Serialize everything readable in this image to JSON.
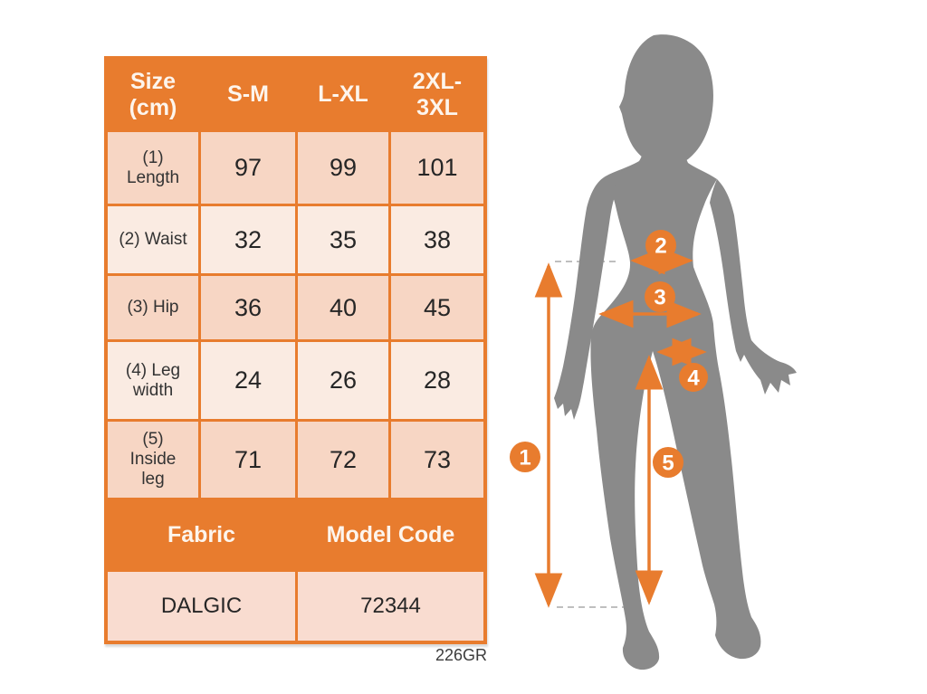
{
  "colors": {
    "accent": "#E87C2E",
    "silhouette": "#8A8A8A",
    "row_dark": "#F7D6C4",
    "row_light": "#FAEBE2",
    "fabric_row": "#F9DCD0"
  },
  "size_table": {
    "columns": [
      [
        "Size",
        "(cm)"
      ],
      [
        "S-M"
      ],
      [
        "L-XL"
      ],
      [
        "2XL-",
        "3XL"
      ]
    ],
    "rows": [
      {
        "label": [
          "(1)",
          "Length"
        ],
        "values": [
          "97",
          "99",
          "101"
        ]
      },
      {
        "label": [
          "(2) Waist"
        ],
        "values": [
          "32",
          "35",
          "38"
        ]
      },
      {
        "label": [
          "(3) Hip"
        ],
        "values": [
          "36",
          "40",
          "45"
        ]
      },
      {
        "label": [
          "(4) Leg",
          "width"
        ],
        "values": [
          "24",
          "26",
          "28"
        ]
      },
      {
        "label": [
          "(5)",
          "Inside",
          "leg"
        ],
        "values": [
          "71",
          "72",
          "73"
        ]
      }
    ]
  },
  "info_table": {
    "headers": [
      "Fabric",
      "Model Code"
    ],
    "values": [
      "DALGIC",
      "72344"
    ]
  },
  "footnote": "226GR",
  "diagram": {
    "markers": [
      {
        "number": "1",
        "meaning": "Length"
      },
      {
        "number": "2",
        "meaning": "Waist"
      },
      {
        "number": "3",
        "meaning": "Hip"
      },
      {
        "number": "4",
        "meaning": "Leg width"
      },
      {
        "number": "5",
        "meaning": "Inside leg"
      }
    ]
  }
}
